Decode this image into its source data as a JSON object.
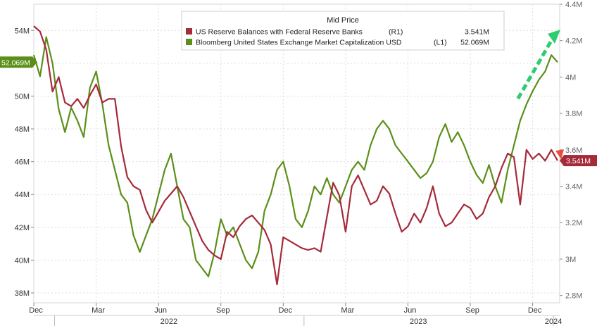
{
  "chart_data": {
    "type": "line",
    "title": "Mid Price",
    "legend": {
      "placement": "top-center",
      "entries": [
        {
          "name": "US Reserve Balances with Federal Reserve Banks",
          "axis_tag": "(R1)",
          "value_label": "3.541M",
          "color": "#a52a3a"
        },
        {
          "name": "Bloomberg United States Exchange Market Capitalization USD",
          "axis_tag": "(L1)",
          "value_label": "52.069M",
          "color": "#5c8f1a"
        }
      ]
    },
    "left_axis": {
      "ylim": [
        37.4,
        55.6
      ],
      "ticks": [
        38,
        40,
        42,
        44,
        46,
        48,
        50,
        52,
        54
      ],
      "tick_labels": [
        "38M",
        "40M",
        "42M",
        "44M",
        "46M",
        "48M",
        "50M",
        "52M",
        "54M"
      ],
      "last_value_label": "52.069M",
      "last_value": 52.069
    },
    "right_axis": {
      "ylim": [
        2.76,
        4.4
      ],
      "ticks": [
        2.8,
        3.0,
        3.2,
        3.4,
        3.6,
        3.8,
        4.0,
        4.2,
        4.4
      ],
      "tick_labels": [
        "2.8M",
        "3M",
        "3.2M",
        "3.4M",
        "3.6M",
        "3.8M",
        "4M",
        "4.2M",
        "4.4M"
      ],
      "last_value_label": "3.541M",
      "last_value": 3.541
    },
    "x_axis": {
      "range": [
        0,
        25.3
      ],
      "month_ticks": [
        {
          "label": "Dec",
          "t": 0
        },
        {
          "label": "Mar",
          "t": 3
        },
        {
          "label": "Jun",
          "t": 6
        },
        {
          "label": "Sep",
          "t": 9
        },
        {
          "label": "Dec",
          "t": 12
        },
        {
          "label": "Mar",
          "t": 15
        },
        {
          "label": "Jun",
          "t": 18
        },
        {
          "label": "Sep",
          "t": 21
        },
        {
          "label": "Dec",
          "t": 24
        }
      ],
      "year_labels": [
        {
          "label": "2022",
          "t": 6.5
        },
        {
          "label": "2023",
          "t": 18.5
        },
        {
          "label": "2024",
          "t": 25.0
        }
      ],
      "year_separators": [
        1.0,
        13.0,
        25.0
      ]
    },
    "series": [
      {
        "name": "Bloomberg United States Exchange Market Capitalization USD",
        "axis": "left",
        "color": "#5c8f1a",
        "x": [
          0,
          0.3,
          0.6,
          0.9,
          1.2,
          1.5,
          1.8,
          2.1,
          2.4,
          2.7,
          3.0,
          3.3,
          3.6,
          3.9,
          4.2,
          4.5,
          4.8,
          5.1,
          5.4,
          5.7,
          6.0,
          6.3,
          6.6,
          6.9,
          7.2,
          7.5,
          7.8,
          8.1,
          8.4,
          8.7,
          9.0,
          9.3,
          9.6,
          9.9,
          10.2,
          10.5,
          10.8,
          11.1,
          11.4,
          11.7,
          12.0,
          12.3,
          12.6,
          12.9,
          13.2,
          13.5,
          13.8,
          14.1,
          14.4,
          14.7,
          15.0,
          15.3,
          15.6,
          15.9,
          16.2,
          16.5,
          16.8,
          17.1,
          17.4,
          17.7,
          18.0,
          18.3,
          18.6,
          18.9,
          19.2,
          19.5,
          19.8,
          20.1,
          20.4,
          20.7,
          21.0,
          21.3,
          21.6,
          21.9,
          22.2,
          22.5,
          22.8,
          23.1,
          23.4,
          23.7,
          24.0,
          24.3,
          24.6,
          24.9,
          25.2
        ],
        "values": [
          52.5,
          51.2,
          53.6,
          52.0,
          49.2,
          47.8,
          49.3,
          48.5,
          47.5,
          50.5,
          51.5,
          49.5,
          47.0,
          45.5,
          44.0,
          43.5,
          41.5,
          40.5,
          41.5,
          42.5,
          44.0,
          45.5,
          46.5,
          44.5,
          42.5,
          42.0,
          40.0,
          39.5,
          39.0,
          40.5,
          42.5,
          41.5,
          42.0,
          41.0,
          40.0,
          39.5,
          40.5,
          43.0,
          44.0,
          45.5,
          46.0,
          44.5,
          42.5,
          42.0,
          43.0,
          44.5,
          44.0,
          45.0,
          44.0,
          43.5,
          44.5,
          45.5,
          46.0,
          45.5,
          47.0,
          48.0,
          48.5,
          48.0,
          47.0,
          46.5,
          46.0,
          45.5,
          45.0,
          45.3,
          46.0,
          47.5,
          48.3,
          47.2,
          47.8,
          47.0,
          46.0,
          45.2,
          44.7,
          45.8,
          44.5,
          43.5,
          45.5,
          47.0,
          48.5,
          49.5,
          50.3,
          51.0,
          51.5,
          52.5,
          52.069
        ]
      },
      {
        "name": "US Reserve Balances with Federal Reserve Banks",
        "axis": "right",
        "color": "#a52a3a",
        "x": [
          0,
          0.3,
          0.6,
          0.9,
          1.2,
          1.5,
          1.8,
          2.1,
          2.4,
          2.7,
          3.0,
          3.3,
          3.6,
          3.9,
          4.2,
          4.5,
          4.8,
          5.1,
          5.4,
          5.7,
          6.0,
          6.3,
          6.6,
          6.9,
          7.2,
          7.5,
          7.8,
          8.1,
          8.4,
          8.7,
          9.0,
          9.3,
          9.6,
          9.9,
          10.2,
          10.5,
          10.8,
          11.1,
          11.4,
          11.7,
          12.0,
          12.3,
          12.6,
          12.9,
          13.2,
          13.5,
          13.8,
          14.1,
          14.4,
          14.7,
          15.0,
          15.3,
          15.6,
          15.9,
          16.2,
          16.5,
          16.8,
          17.1,
          17.4,
          17.7,
          18.0,
          18.3,
          18.6,
          18.9,
          19.2,
          19.5,
          19.8,
          20.1,
          20.4,
          20.7,
          21.0,
          21.3,
          21.6,
          21.9,
          22.2,
          22.5,
          22.8,
          23.1,
          23.4,
          23.7,
          24.0,
          24.3,
          24.6,
          24.9,
          25.2
        ],
        "values": [
          4.28,
          4.25,
          4.15,
          3.92,
          4.0,
          3.86,
          3.84,
          3.88,
          3.83,
          3.9,
          3.96,
          3.86,
          3.88,
          3.88,
          3.62,
          3.45,
          3.4,
          3.38,
          3.27,
          3.2,
          3.26,
          3.32,
          3.36,
          3.4,
          3.34,
          3.26,
          3.18,
          3.1,
          3.05,
          3.02,
          3.0,
          3.15,
          3.12,
          3.18,
          3.22,
          3.24,
          3.2,
          3.16,
          3.08,
          2.86,
          3.12,
          3.1,
          3.08,
          3.06,
          3.05,
          3.06,
          3.04,
          3.23,
          3.42,
          3.35,
          3.15,
          3.4,
          3.46,
          3.38,
          3.3,
          3.32,
          3.4,
          3.36,
          3.25,
          3.15,
          3.18,
          3.25,
          3.2,
          3.28,
          3.4,
          3.25,
          3.18,
          3.2,
          3.25,
          3.3,
          3.28,
          3.22,
          3.25,
          3.34,
          3.4,
          3.5,
          3.58,
          3.56,
          3.3,
          3.6,
          3.55,
          3.58,
          3.54,
          3.6,
          3.541
        ]
      }
    ]
  }
}
